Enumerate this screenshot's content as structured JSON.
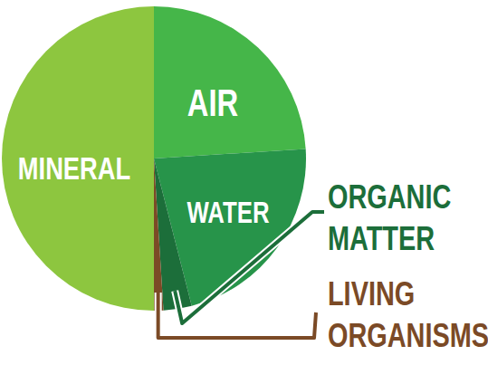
{
  "chart_data": {
    "type": "pie",
    "categories": [
      "AIR",
      "WATER",
      "ORGANIC MATTER",
      "LIVING ORGANISMS",
      "MINERAL"
    ],
    "values": [
      24,
      22,
      3,
      1,
      50
    ],
    "colors": [
      "#45b649",
      "#27944a",
      "#1c6e3a",
      "#7b4a26",
      "#8dc63f"
    ]
  }
}
